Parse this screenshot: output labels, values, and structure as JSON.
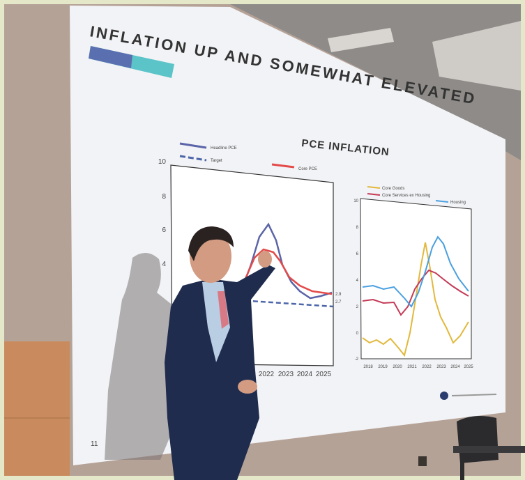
{
  "slide": {
    "title": "INFLATION UP AND SOMEWHAT ELEVATED",
    "chart_title": "PCE INFLATION",
    "page_number": "11",
    "left_chart": {
      "legend": [
        "Headline PCE",
        "Target",
        "Core PCE"
      ],
      "y_ticks": [
        "10",
        "8",
        "6",
        "4"
      ],
      "x_ticks": [
        "2022",
        "2023",
        "2024",
        "2025"
      ],
      "end_labels": [
        "2.9",
        "2.7"
      ]
    },
    "right_chart": {
      "legend": [
        "Core Goods",
        "Core Services ex Housing",
        "Housing"
      ],
      "y_ticks": [
        "10",
        "8",
        "6",
        "4",
        "2",
        "0",
        "-2"
      ],
      "x_ticks": [
        "2018",
        "2019",
        "2020",
        "2021",
        "2022",
        "2023",
        "2024",
        "2025"
      ]
    }
  }
}
